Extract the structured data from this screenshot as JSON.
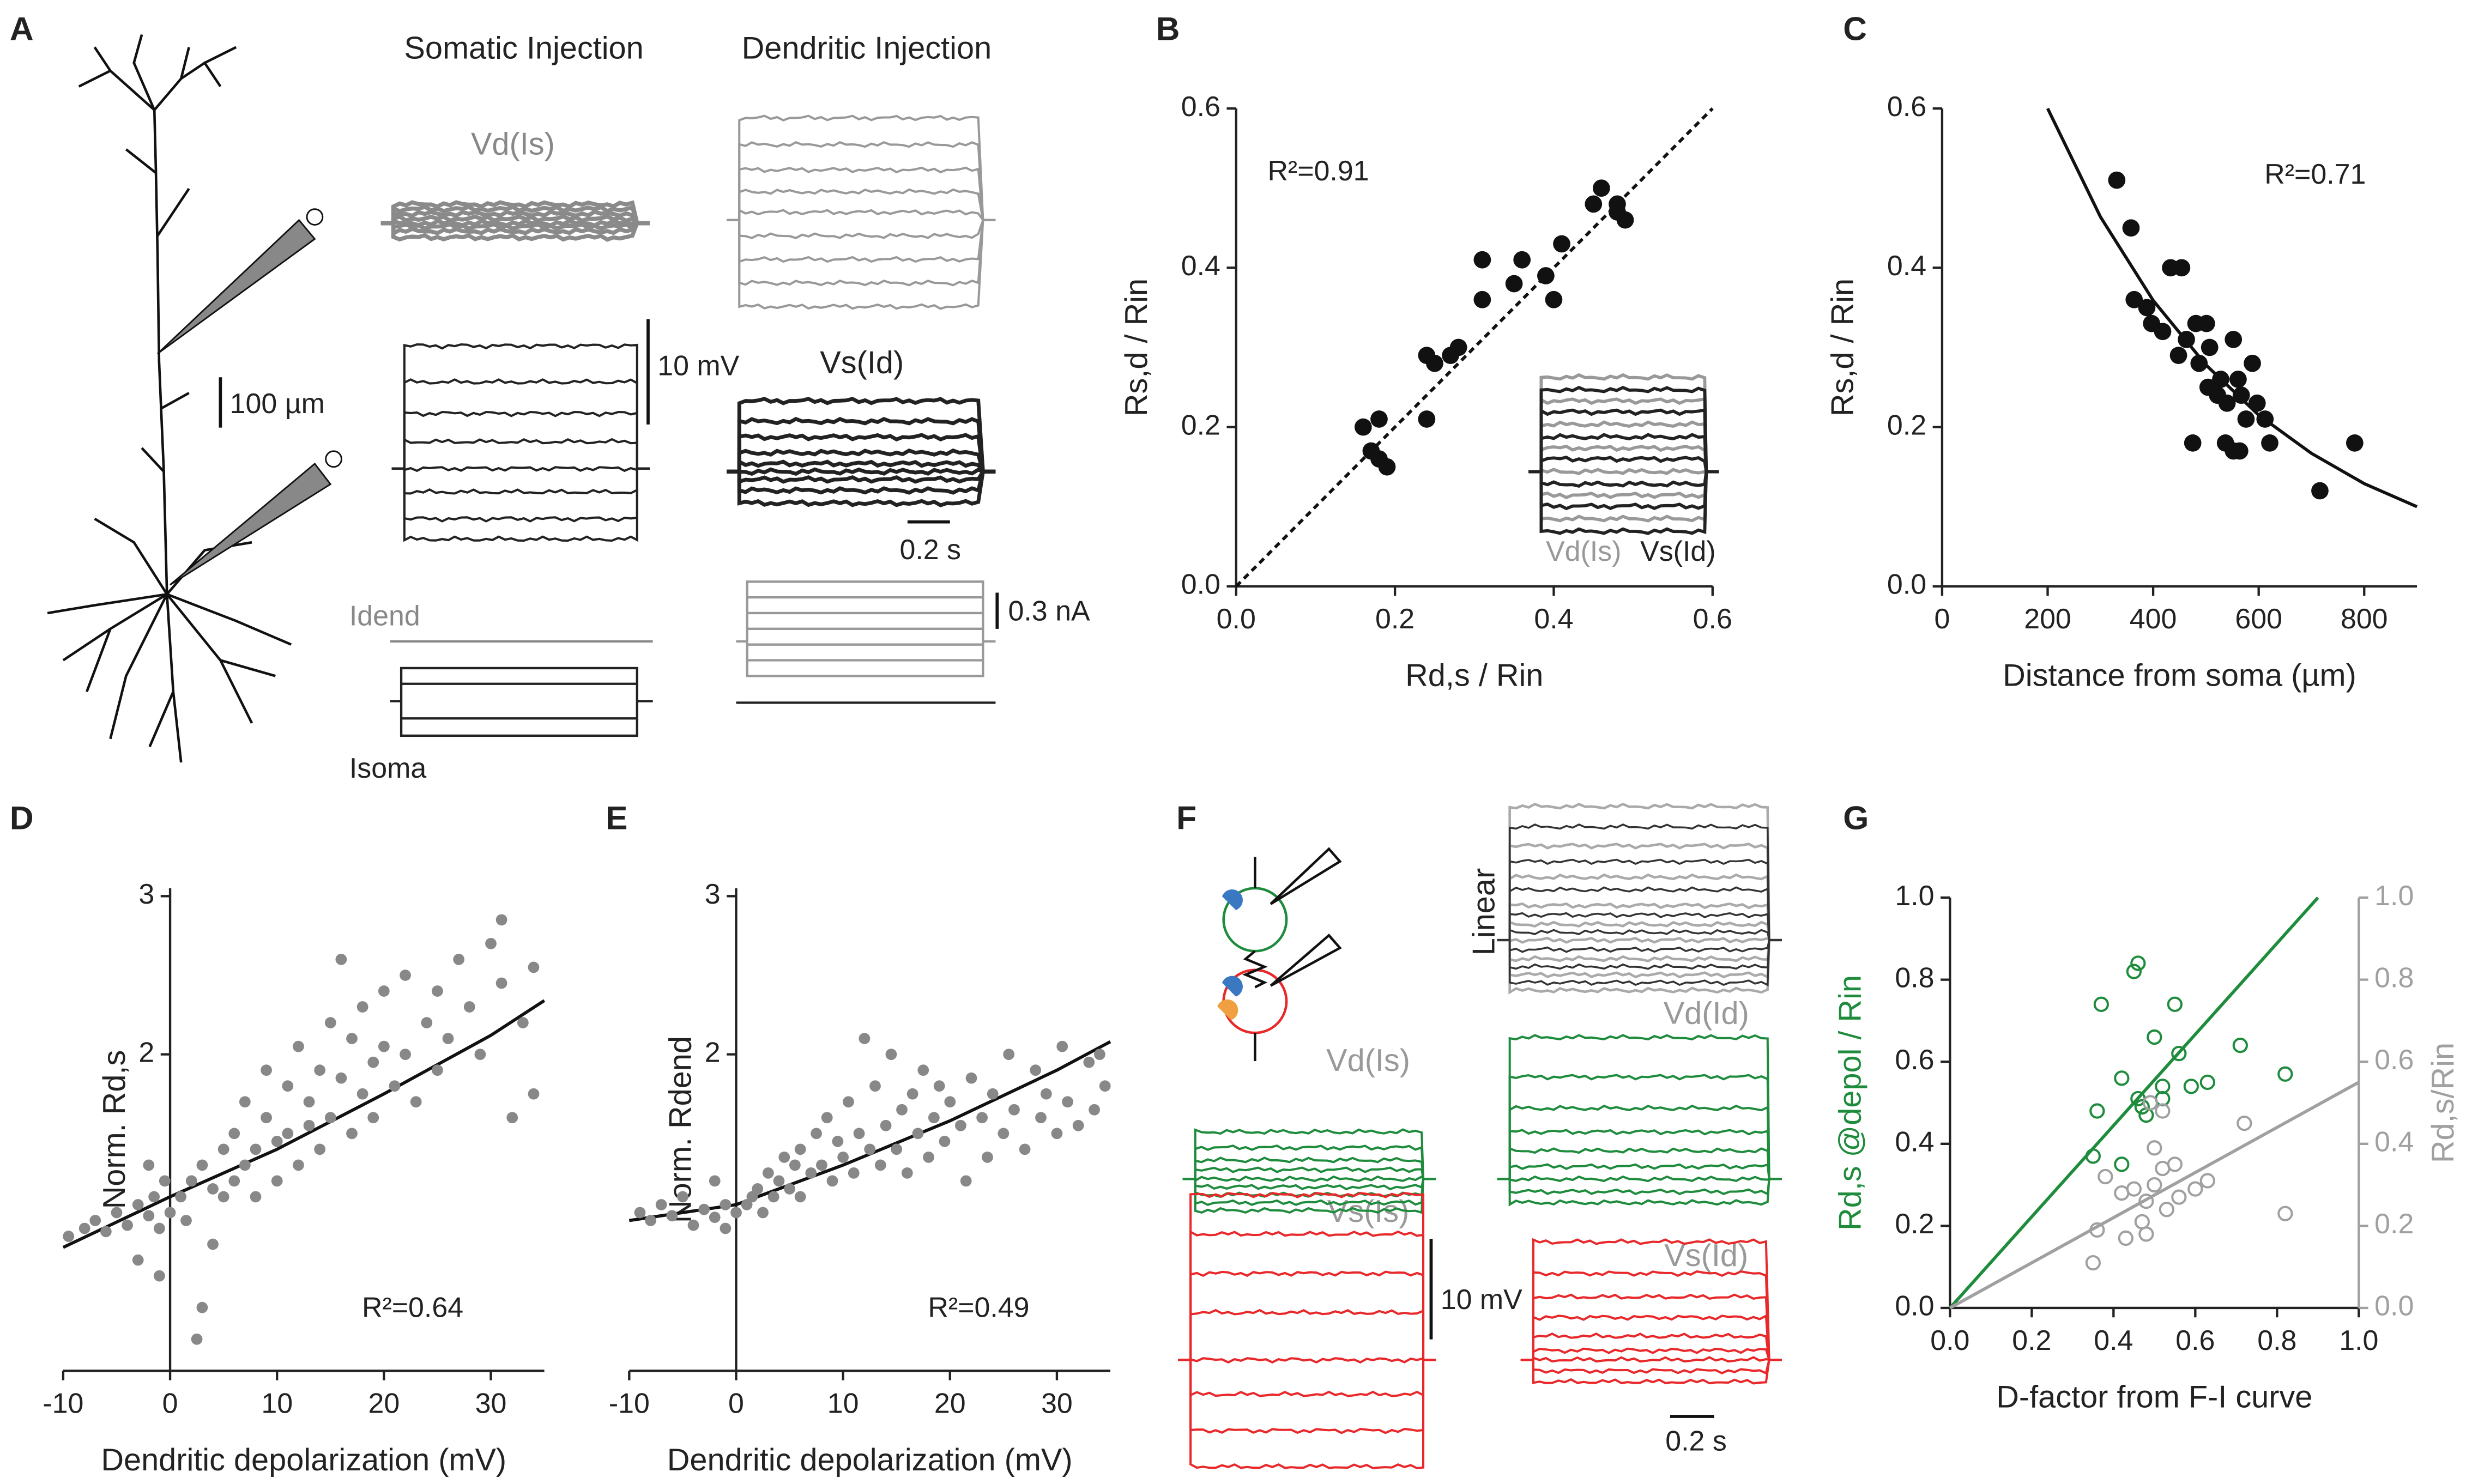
{
  "panel_a": {
    "label": "A",
    "titles": [
      "Somatic Injection",
      "Dendritic Injection"
    ],
    "scale_length": "100 µm",
    "traces": [
      "Vd(Is)",
      "Vs(Id)"
    ],
    "volt_scale": "10 mV",
    "time_scale": "0.2 s",
    "current_scale": "0.3 nA",
    "current_labels": [
      "Idend",
      "Isoma"
    ]
  },
  "panel_f": {
    "label": "F",
    "model": "Linear",
    "traces": [
      "Vd(Id)",
      "Vd(Is)",
      "Vs(Is)",
      "Vs(Id)"
    ],
    "volt_scale": "10 mV",
    "time_scale": "0.2 s"
  },
  "chart_data": [
    {
      "panel": "B",
      "type": "scatter",
      "xlabel": "Rd,s / Rin",
      "ylabel": "Rs,d / Rin",
      "annotation": "R²=0.91",
      "inset_labels": [
        "Vd(Is)",
        "Vs(Id)"
      ],
      "xlim": [
        0,
        0.6
      ],
      "ylim": [
        0,
        0.6
      ],
      "xticks": [
        {
          "value": 0,
          "label": "0.0"
        },
        0.2,
        0.4,
        0.6
      ],
      "yticks": [
        {
          "value": 0,
          "label": "0.0"
        },
        0.2,
        0.4,
        0.6
      ],
      "series": [
        {
          "color": "#111111",
          "marker": "filled",
          "x": [
            0.16,
            0.18,
            0.17,
            0.18,
            0.19,
            0.24,
            0.24,
            0.25,
            0.27,
            0.28,
            0.31,
            0.31,
            0.35,
            0.36,
            0.39,
            0.4,
            0.41,
            0.46,
            0.45,
            0.48,
            0.49,
            0.48
          ],
          "values": [
            0.2,
            0.21,
            0.17,
            0.16,
            0.15,
            0.21,
            0.29,
            0.28,
            0.29,
            0.3,
            0.41,
            0.36,
            0.38,
            0.41,
            0.39,
            0.36,
            0.43,
            0.5,
            0.48,
            0.48,
            0.46,
            0.47
          ]
        }
      ],
      "fits": [
        {
          "color": "#111111",
          "dashed": true,
          "x": [
            0,
            0.6
          ],
          "values": [
            0,
            0.6
          ]
        }
      ]
    },
    {
      "panel": "C",
      "type": "scatter",
      "xlabel": "Distance from soma (µm)",
      "ylabel": "Rs,d / Rin",
      "annotation": "R²=0.71",
      "xlim": [
        0,
        900
      ],
      "ylim": [
        0,
        0.6
      ],
      "xticks": [
        0,
        200,
        400,
        600,
        800
      ],
      "yticks": [
        {
          "value": 0,
          "label": "0.0"
        },
        0.2,
        0.4,
        0.6
      ],
      "series": [
        {
          "color": "#111111",
          "marker": "filled",
          "x": [
            331,
            358,
            364,
            388,
            397,
            418,
            433,
            454,
            448,
            463,
            481,
            487,
            501,
            507,
            528,
            504,
            522,
            540,
            552,
            561,
            567,
            576,
            588,
            597,
            475,
            537,
            552,
            564,
            612,
            621,
            716,
            782
          ],
          "values": [
            0.51,
            0.45,
            0.36,
            0.35,
            0.33,
            0.32,
            0.4,
            0.4,
            0.29,
            0.31,
            0.33,
            0.28,
            0.33,
            0.3,
            0.26,
            0.25,
            0.24,
            0.23,
            0.31,
            0.26,
            0.24,
            0.21,
            0.28,
            0.23,
            0.18,
            0.18,
            0.17,
            0.17,
            0.21,
            0.18,
            0.12,
            0.18
          ]
        }
      ],
      "fits": [
        {
          "color": "#111111",
          "dashed": false,
          "x": [
            200,
            300,
            400,
            500,
            600,
            700,
            800,
            900
          ],
          "values": [
            0.6,
            0.464,
            0.359,
            0.278,
            0.215,
            0.167,
            0.129,
            0.1
          ]
        }
      ]
    },
    {
      "panel": "D",
      "type": "scatter",
      "xlabel": "Dendritic depolarization (mV)",
      "ylabel": "Norm. Rd,s",
      "annotation": "R²=0.64",
      "xlim": [
        -10,
        35
      ],
      "ylim": [
        0,
        3.05
      ],
      "xticks": [
        -10,
        0,
        10,
        20,
        30
      ],
      "yticks": [
        2,
        3
      ],
      "series": [
        {
          "color": "#888888",
          "marker": "filled",
          "x": [
            -9.5,
            -8,
            -7,
            -6,
            -5,
            -4,
            -3,
            -2,
            -1.5,
            -1,
            -0.5,
            0,
            -3,
            -1,
            -2,
            1,
            1.5,
            2,
            2.5,
            3,
            3,
            4,
            4,
            5,
            5,
            6,
            6,
            7,
            7,
            8,
            8,
            9,
            9,
            10,
            10,
            11,
            11,
            12,
            12,
            13,
            13,
            14,
            14,
            15,
            15,
            16,
            16,
            17,
            17,
            18,
            18,
            19,
            19,
            20,
            20,
            21,
            22,
            22,
            23,
            24,
            25,
            25,
            26,
            27,
            28,
            29,
            30,
            31,
            31,
            32,
            33,
            34,
            34
          ],
          "values": [
            0.85,
            0.9,
            0.95,
            0.88,
            1.0,
            0.92,
            1.05,
            0.98,
            1.1,
            0.9,
            1.2,
            1.0,
            0.7,
            0.6,
            1.3,
            1.1,
            0.95,
            1.2,
            0.2,
            0.4,
            1.3,
            1.15,
            0.8,
            1.4,
            1.1,
            1.5,
            1.2,
            1.3,
            1.7,
            1.4,
            1.1,
            1.6,
            1.9,
            1.45,
            1.2,
            1.8,
            1.5,
            1.3,
            2.05,
            1.7,
            1.55,
            1.9,
            1.4,
            2.2,
            1.6,
            2.6,
            1.85,
            1.5,
            2.1,
            1.75,
            2.3,
            1.95,
            1.6,
            2.05,
            2.4,
            1.8,
            2.0,
            2.5,
            1.7,
            2.2,
            2.4,
            1.9,
            2.1,
            2.6,
            2.3,
            2.0,
            2.7,
            2.85,
            2.45,
            1.6,
            2.2,
            1.75,
            2.55
          ]
        }
      ],
      "fits": [
        {
          "color": "#111111",
          "dashed": false,
          "x": [
            -10,
            0,
            10,
            20,
            30,
            35
          ],
          "values": [
            0.78,
            1.1,
            1.4,
            1.75,
            2.12,
            2.34
          ]
        }
      ]
    },
    {
      "panel": "E",
      "type": "scatter",
      "xlabel": "Dendritic depolarization (mV)",
      "ylabel": "Norm. Rdend",
      "annotation": "R²=0.49",
      "xlim": [
        -10,
        35
      ],
      "ylim": [
        0,
        3.05
      ],
      "xticks": [
        -10,
        0,
        10,
        20,
        30
      ],
      "yticks": [
        2,
        3
      ],
      "series": [
        {
          "color": "#888888",
          "marker": "filled",
          "x": [
            -9,
            -8,
            -7,
            -6,
            -5,
            -4,
            -3,
            -2,
            -1,
            -1,
            0,
            -2,
            1,
            1.5,
            2,
            2.5,
            3,
            3.5,
            4,
            4.5,
            5,
            5.5,
            6,
            6,
            7,
            7.5,
            8,
            8.5,
            9,
            9.5,
            10,
            10.5,
            11,
            11.5,
            12,
            12.5,
            13,
            13.5,
            14,
            14.5,
            15,
            15.5,
            16,
            16.5,
            17,
            17.5,
            18,
            18.5,
            19,
            19.5,
            20,
            21,
            21.5,
            22,
            23,
            23.5,
            24,
            25,
            25.5,
            26,
            27,
            28,
            28.5,
            29,
            30,
            30.5,
            31,
            32,
            33,
            33.5,
            34,
            34.5
          ],
          "values": [
            1.0,
            0.95,
            1.05,
            0.98,
            1.1,
            0.92,
            1.02,
            0.97,
            1.05,
            0.9,
            1.0,
            1.2,
            1.05,
            1.1,
            1.15,
            1.0,
            1.25,
            1.1,
            1.2,
            1.35,
            1.15,
            1.3,
            1.4,
            1.1,
            1.25,
            1.5,
            1.3,
            1.6,
            1.2,
            1.45,
            1.35,
            1.7,
            1.25,
            1.5,
            2.1,
            1.4,
            1.8,
            1.3,
            1.55,
            2.0,
            1.4,
            1.65,
            1.25,
            1.75,
            1.5,
            1.9,
            1.35,
            1.6,
            1.8,
            1.45,
            1.7,
            1.55,
            1.2,
            1.85,
            1.6,
            1.35,
            1.75,
            1.5,
            2.0,
            1.65,
            1.4,
            1.9,
            1.6,
            1.75,
            1.5,
            2.05,
            1.7,
            1.55,
            1.95,
            1.65,
            2.0,
            1.8
          ]
        }
      ],
      "fits": [
        {
          "color": "#111111",
          "dashed": false,
          "x": [
            -10,
            0,
            10,
            20,
            30,
            35
          ],
          "values": [
            0.95,
            1.05,
            1.3,
            1.58,
            1.9,
            2.08
          ]
        }
      ]
    },
    {
      "panel": "G",
      "type": "scatter",
      "xlabel": "D-factor from F-I curve",
      "ylabel": "Rd,s @depol / Rin",
      "y2label": "Rd,s/Rin",
      "xlim": [
        0,
        1
      ],
      "ylim": [
        0,
        1
      ],
      "y2lim": [
        0,
        1
      ],
      "xticks": [
        {
          "value": 0,
          "label": "0.0"
        },
        0.2,
        0.4,
        0.6,
        0.8,
        {
          "value": 1,
          "label": "1.0"
        }
      ],
      "yticks": [
        {
          "value": 0,
          "label": "0.0"
        },
        0.2,
        0.4,
        0.6,
        0.8,
        {
          "value": 1,
          "label": "1.0"
        }
      ],
      "y2ticks": [
        {
          "value": 0,
          "label": "0.0"
        },
        0.2,
        0.4,
        0.6,
        0.8,
        {
          "value": 1,
          "label": "1.0"
        }
      ],
      "series": [
        {
          "color": "#1e8c3c",
          "marker": "open",
          "x": [
            0.35,
            0.36,
            0.37,
            0.42,
            0.45,
            0.46,
            0.46,
            0.47,
            0.48,
            0.5,
            0.52,
            0.52,
            0.55,
            0.56,
            0.59,
            0.63,
            0.71,
            0.82,
            0.42
          ],
          "values": [
            0.37,
            0.48,
            0.74,
            0.56,
            0.82,
            0.84,
            0.51,
            0.49,
            0.47,
            0.66,
            0.54,
            0.51,
            0.74,
            0.62,
            0.54,
            0.55,
            0.64,
            0.57,
            0.35
          ]
        },
        {
          "color": "#a0a0a0",
          "marker": "open",
          "axis": "y2",
          "x": [
            0.35,
            0.36,
            0.38,
            0.42,
            0.43,
            0.45,
            0.47,
            0.48,
            0.48,
            0.49,
            0.5,
            0.5,
            0.52,
            0.53,
            0.55,
            0.56,
            0.6,
            0.63,
            0.72,
            0.82,
            0.52
          ],
          "values": [
            0.11,
            0.19,
            0.32,
            0.28,
            0.17,
            0.29,
            0.21,
            0.18,
            0.26,
            0.5,
            0.39,
            0.3,
            0.34,
            0.24,
            0.35,
            0.27,
            0.29,
            0.31,
            0.45,
            0.23,
            0.48
          ]
        }
      ],
      "fits": [
        {
          "color": "#1e8c3c",
          "dashed": false,
          "x": [
            0,
            0.9
          ],
          "values": [
            0,
            1.0
          ]
        },
        {
          "color": "#a0a0a0",
          "dashed": false,
          "axis": "y2",
          "x": [
            0,
            1.0
          ],
          "values": [
            0,
            0.55
          ]
        }
      ]
    }
  ]
}
